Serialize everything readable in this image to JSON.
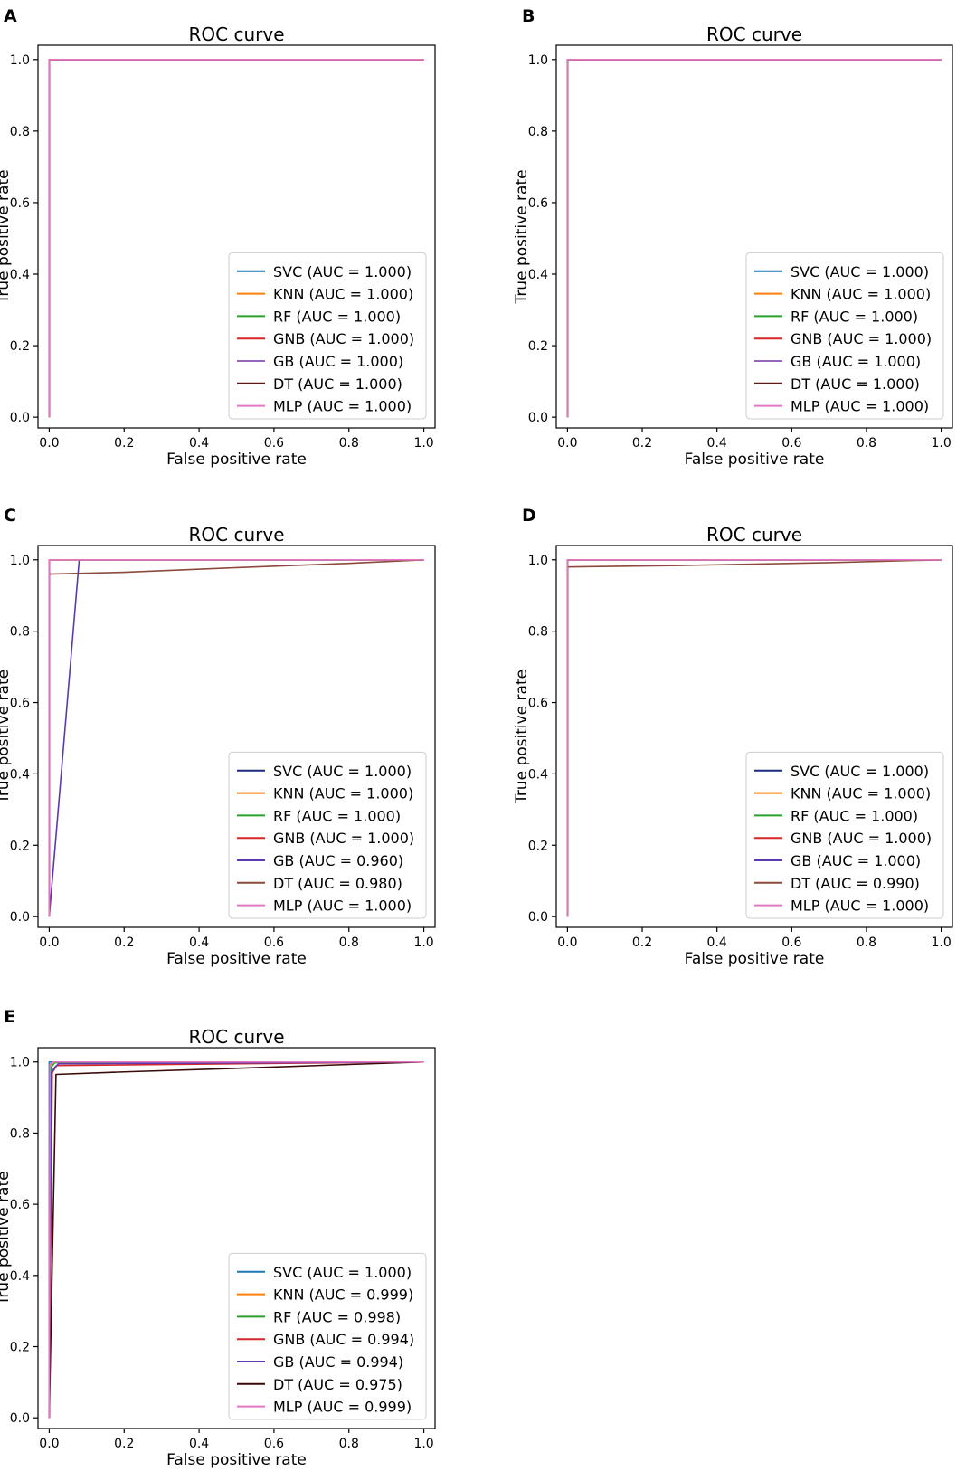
{
  "chart_data": [
    {
      "panel": "A",
      "type": "line",
      "title": "ROC curve",
      "xlabel": "False positive rate",
      "ylabel": "True positive rate",
      "xlim": [
        -0.03,
        1.03
      ],
      "ylim": [
        -0.03,
        1.04
      ],
      "xticks": [
        "0.0",
        "0.2",
        "0.4",
        "0.6",
        "0.8",
        "1.0"
      ],
      "yticks": [
        "0.0",
        "0.2",
        "0.4",
        "0.6",
        "0.8",
        "1.0"
      ],
      "legend_position": "lower-right",
      "series": [
        {
          "name": "SVC",
          "label": "SVC (AUC = 1.000)",
          "color": "#1f77b4",
          "x": [
            0,
            0,
            1
          ],
          "y": [
            0,
            1,
            1
          ]
        },
        {
          "name": "KNN",
          "label": "KNN (AUC = 1.000)",
          "color": "#ff7f0e",
          "x": [
            0,
            0,
            1
          ],
          "y": [
            0,
            1,
            1
          ]
        },
        {
          "name": "RF",
          "label": "RF (AUC = 1.000)",
          "color": "#2ca02c",
          "x": [
            0,
            0,
            1
          ],
          "y": [
            0,
            1,
            1
          ]
        },
        {
          "name": "GNB",
          "label": "GNB (AUC = 1.000)",
          "color": "#d62728",
          "x": [
            0,
            0,
            1
          ],
          "y": [
            0,
            1,
            1
          ]
        },
        {
          "name": "GB",
          "label": "GB (AUC = 1.000)",
          "color": "#9467bd",
          "x": [
            0,
            0,
            1
          ],
          "y": [
            0,
            1,
            1
          ]
        },
        {
          "name": "DT",
          "label": "DT (AUC = 1.000)",
          "color": "#5a1a1a",
          "x": [
            0,
            0,
            1
          ],
          "y": [
            0,
            1,
            1
          ]
        },
        {
          "name": "MLP",
          "label": "MLP (AUC = 1.000)",
          "color": "#e377c2",
          "x": [
            0,
            0,
            1
          ],
          "y": [
            0,
            1,
            1
          ]
        }
      ]
    },
    {
      "panel": "B",
      "type": "line",
      "title": "ROC curve",
      "xlabel": "False positive rate",
      "ylabel": "True positive rate",
      "xlim": [
        -0.03,
        1.03
      ],
      "ylim": [
        -0.03,
        1.04
      ],
      "xticks": [
        "0.0",
        "0.2",
        "0.4",
        "0.6",
        "0.8",
        "1.0"
      ],
      "yticks": [
        "0.0",
        "0.2",
        "0.4",
        "0.6",
        "0.8",
        "1.0"
      ],
      "legend_position": "lower-right",
      "series": [
        {
          "name": "SVC",
          "label": "SVC (AUC = 1.000)",
          "color": "#1f77b4",
          "x": [
            0,
            0,
            1
          ],
          "y": [
            0,
            1,
            1
          ]
        },
        {
          "name": "KNN",
          "label": "KNN (AUC = 1.000)",
          "color": "#ff7f0e",
          "x": [
            0,
            0,
            1
          ],
          "y": [
            0,
            1,
            1
          ]
        },
        {
          "name": "RF",
          "label": "RF (AUC = 1.000)",
          "color": "#2ca02c",
          "x": [
            0,
            0,
            1
          ],
          "y": [
            0,
            1,
            1
          ]
        },
        {
          "name": "GNB",
          "label": "GNB (AUC = 1.000)",
          "color": "#d62728",
          "x": [
            0,
            0,
            1
          ],
          "y": [
            0,
            1,
            1
          ]
        },
        {
          "name": "GB",
          "label": "GB (AUC = 1.000)",
          "color": "#9467bd",
          "x": [
            0,
            0,
            1
          ],
          "y": [
            0,
            1,
            1
          ]
        },
        {
          "name": "DT",
          "label": "DT (AUC = 1.000)",
          "color": "#5a1a1a",
          "x": [
            0,
            0,
            1
          ],
          "y": [
            0,
            1,
            1
          ]
        },
        {
          "name": "MLP",
          "label": "MLP (AUC = 1.000)",
          "color": "#e377c2",
          "x": [
            0,
            0,
            1
          ],
          "y": [
            0,
            1,
            1
          ]
        }
      ]
    },
    {
      "panel": "C",
      "type": "line",
      "title": "ROC curve",
      "xlabel": "False positive rate",
      "ylabel": "True positive rate",
      "xlim": [
        -0.03,
        1.03
      ],
      "ylim": [
        -0.03,
        1.04
      ],
      "xticks": [
        "0.0",
        "0.2",
        "0.4",
        "0.6",
        "0.8",
        "1.0"
      ],
      "yticks": [
        "0.0",
        "0.2",
        "0.4",
        "0.6",
        "0.8",
        "1.0"
      ],
      "legend_position": "lower-right",
      "series": [
        {
          "name": "SVC",
          "label": "SVC (AUC = 1.000)",
          "color": "#1a2a80",
          "x": [
            0,
            0,
            1
          ],
          "y": [
            0,
            1,
            1
          ]
        },
        {
          "name": "KNN",
          "label": "KNN (AUC = 1.000)",
          "color": "#ff7f0e",
          "x": [
            0,
            0,
            1
          ],
          "y": [
            0,
            1,
            1
          ]
        },
        {
          "name": "RF",
          "label": "RF (AUC = 1.000)",
          "color": "#2ca02c",
          "x": [
            0,
            0,
            1
          ],
          "y": [
            0,
            1,
            1
          ]
        },
        {
          "name": "GNB",
          "label": "GNB (AUC = 1.000)",
          "color": "#d62728",
          "x": [
            0,
            0,
            1
          ],
          "y": [
            0,
            1,
            1
          ]
        },
        {
          "name": "GB",
          "label": "GB (AUC = 0.960)",
          "color": "#5b3ab0",
          "x": [
            0,
            0.08,
            1
          ],
          "y": [
            0,
            1,
            1
          ]
        },
        {
          "name": "DT",
          "label": "DT (AUC = 0.980)",
          "color": "#8c4a3a",
          "x": [
            0,
            0,
            0.2,
            0.5,
            0.8,
            1
          ],
          "y": [
            0,
            0.96,
            0.965,
            0.978,
            0.99,
            1
          ]
        },
        {
          "name": "MLP",
          "label": "MLP (AUC = 1.000)",
          "color": "#e377c2",
          "x": [
            0,
            0,
            1
          ],
          "y": [
            0,
            1,
            1
          ]
        }
      ]
    },
    {
      "panel": "D",
      "type": "line",
      "title": "ROC curve",
      "xlabel": "False positive rate",
      "ylabel": "True positive rate",
      "xlim": [
        -0.03,
        1.03
      ],
      "ylim": [
        -0.03,
        1.04
      ],
      "xticks": [
        "0.0",
        "0.2",
        "0.4",
        "0.6",
        "0.8",
        "1.0"
      ],
      "yticks": [
        "0.0",
        "0.2",
        "0.4",
        "0.6",
        "0.8",
        "1.0"
      ],
      "legend_position": "lower-right",
      "series": [
        {
          "name": "SVC",
          "label": "SVC (AUC = 1.000)",
          "color": "#1a2a80",
          "x": [
            0,
            0,
            1
          ],
          "y": [
            0,
            1,
            1
          ]
        },
        {
          "name": "KNN",
          "label": "KNN (AUC = 1.000)",
          "color": "#ff7f0e",
          "x": [
            0,
            0,
            1
          ],
          "y": [
            0,
            1,
            1
          ]
        },
        {
          "name": "RF",
          "label": "RF (AUC = 1.000)",
          "color": "#2ca02c",
          "x": [
            0,
            0,
            1
          ],
          "y": [
            0,
            1,
            1
          ]
        },
        {
          "name": "GNB",
          "label": "GNB (AUC = 1.000)",
          "color": "#d62728",
          "x": [
            0,
            0,
            1
          ],
          "y": [
            0,
            1,
            1
          ]
        },
        {
          "name": "GB",
          "label": "GB (AUC = 1.000)",
          "color": "#5b3ab0",
          "x": [
            0,
            0,
            1
          ],
          "y": [
            0,
            1,
            1
          ]
        },
        {
          "name": "DT",
          "label": "DT (AUC = 0.990)",
          "color": "#8c4a3a",
          "x": [
            0,
            0,
            0.3,
            0.7,
            1
          ],
          "y": [
            0,
            0.98,
            0.984,
            0.992,
            1
          ]
        },
        {
          "name": "MLP",
          "label": "MLP (AUC = 1.000)",
          "color": "#e377c2",
          "x": [
            0,
            0,
            1
          ],
          "y": [
            0,
            1,
            1
          ]
        }
      ]
    },
    {
      "panel": "E",
      "type": "line",
      "title": "ROC curve",
      "xlabel": "False positive rate",
      "ylabel": "True positive rate",
      "xlim": [
        -0.03,
        1.03
      ],
      "ylim": [
        -0.03,
        1.04
      ],
      "xticks": [
        "0.0",
        "0.2",
        "0.4",
        "0.6",
        "0.8",
        "1.0"
      ],
      "yticks": [
        "0.0",
        "0.2",
        "0.4",
        "0.6",
        "0.8",
        "1.0"
      ],
      "legend_position": "lower-right",
      "series": [
        {
          "name": "SVC",
          "label": "SVC (AUC = 1.000)",
          "color": "#1f77b4",
          "x": [
            0,
            0,
            1
          ],
          "y": [
            0,
            1,
            1
          ]
        },
        {
          "name": "KNN",
          "label": "KNN (AUC = 0.999)",
          "color": "#ff7f0e",
          "x": [
            0,
            0.003,
            0.01,
            1
          ],
          "y": [
            0,
            0.99,
            1,
            1
          ]
        },
        {
          "name": "RF",
          "label": "RF (AUC = 0.998)",
          "color": "#2ca02c",
          "x": [
            0,
            0.005,
            0.015,
            1
          ],
          "y": [
            0,
            0.985,
            0.998,
            1
          ]
        },
        {
          "name": "GNB",
          "label": "GNB (AUC = 0.994)",
          "color": "#d62728",
          "x": [
            0,
            0.008,
            0.02,
            0.6,
            1
          ],
          "y": [
            0,
            0.97,
            0.99,
            0.996,
            1
          ]
        },
        {
          "name": "GB",
          "label": "GB (AUC = 0.994)",
          "color": "#5b3ab0",
          "x": [
            0,
            0.006,
            0.015,
            0.025,
            1
          ],
          "y": [
            0,
            0.97,
            0.985,
            0.995,
            1
          ]
        },
        {
          "name": "DT",
          "label": "DT (AUC = 0.975)",
          "color": "#3a0a0a",
          "x": [
            0,
            0.018,
            0.2,
            0.5,
            0.8,
            1
          ],
          "y": [
            0,
            0.965,
            0.972,
            0.982,
            0.993,
            1
          ]
        },
        {
          "name": "MLP",
          "label": "MLP (AUC = 0.999)",
          "color": "#e377c2",
          "x": [
            0,
            0.002,
            0.01,
            1
          ],
          "y": [
            0,
            0.993,
            1,
            1
          ]
        }
      ]
    }
  ]
}
